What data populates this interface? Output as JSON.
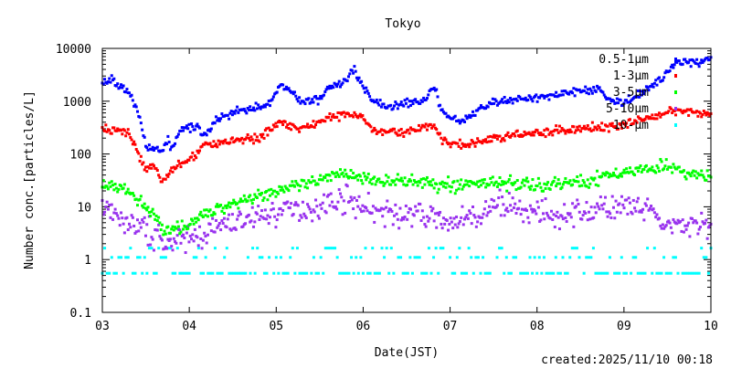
{
  "chart_data": {
    "type": "scatter",
    "title": "Tokyo",
    "xlabel": "Date(JST)",
    "ylabel": "Number conc.[particles/L]",
    "yscale": "log",
    "ylim": [
      0.1,
      10000
    ],
    "xlim": [
      3,
      10
    ],
    "xticks": [
      {
        "v": 3,
        "label": "03"
      },
      {
        "v": 4,
        "label": "04"
      },
      {
        "v": 5,
        "label": "05"
      },
      {
        "v": 6,
        "label": "06"
      },
      {
        "v": 7,
        "label": "07"
      },
      {
        "v": 8,
        "label": "08"
      },
      {
        "v": 9,
        "label": "09"
      },
      {
        "v": 10,
        "label": "10"
      }
    ],
    "yticks": [
      {
        "v": 0.1,
        "label": "0.1"
      },
      {
        "v": 1,
        "label": "1"
      },
      {
        "v": 10,
        "label": "10"
      },
      {
        "v": 100,
        "label": "100"
      },
      {
        "v": 1000,
        "label": "1000"
      },
      {
        "v": 10000,
        "label": "10000"
      }
    ],
    "legend_position": "top-right",
    "series": [
      {
        "name": "0.5-1μm",
        "color": "#0000ff",
        "noise": 0.12,
        "points": [
          [
            3,
            2000
          ],
          [
            3.1,
            2800
          ],
          [
            3.2,
            2000
          ],
          [
            3.3,
            1500
          ],
          [
            3.4,
            700
          ],
          [
            3.5,
            150
          ],
          [
            3.6,
            120
          ],
          [
            3.7,
            120
          ],
          [
            3.75,
            200
          ],
          [
            3.8,
            120
          ],
          [
            3.9,
            300
          ],
          [
            4,
            300
          ],
          [
            4.1,
            350
          ],
          [
            4.15,
            200
          ],
          [
            4.3,
            400
          ],
          [
            4.5,
            600
          ],
          [
            4.7,
            700
          ],
          [
            4.9,
            800
          ],
          [
            5,
            1500
          ],
          [
            5.05,
            2000
          ],
          [
            5.1,
            1800
          ],
          [
            5.3,
            1000
          ],
          [
            5.5,
            1100
          ],
          [
            5.6,
            1800
          ],
          [
            5.8,
            2500
          ],
          [
            5.9,
            4000
          ],
          [
            6,
            2000
          ],
          [
            6.1,
            1000
          ],
          [
            6.3,
            800
          ],
          [
            6.5,
            900
          ],
          [
            6.7,
            1000
          ],
          [
            6.82,
            1900
          ],
          [
            6.9,
            700
          ],
          [
            7,
            500
          ],
          [
            7.1,
            400
          ],
          [
            7.2,
            500
          ],
          [
            7.4,
            800
          ],
          [
            7.6,
            1000
          ],
          [
            7.8,
            1100
          ],
          [
            8,
            1200
          ],
          [
            8.2,
            1300
          ],
          [
            8.4,
            1500
          ],
          [
            8.6,
            1600
          ],
          [
            8.7,
            1800
          ],
          [
            8.8,
            1200
          ],
          [
            8.9,
            1000
          ],
          [
            9,
            900
          ],
          [
            9.2,
            1500
          ],
          [
            9.4,
            2500
          ],
          [
            9.5,
            3500
          ],
          [
            9.6,
            5000
          ],
          [
            9.7,
            6000
          ],
          [
            9.8,
            5000
          ],
          [
            10,
            6500
          ]
        ]
      },
      {
        "name": "1-3μm",
        "color": "#ff0000",
        "noise": 0.12,
        "points": [
          [
            3,
            300
          ],
          [
            3.3,
            250
          ],
          [
            3.5,
            50
          ],
          [
            3.6,
            60
          ],
          [
            3.7,
            30
          ],
          [
            3.8,
            50
          ],
          [
            4,
            80
          ],
          [
            4.2,
            150
          ],
          [
            4.5,
            180
          ],
          [
            4.8,
            200
          ],
          [
            5,
            350
          ],
          [
            5.1,
            400
          ],
          [
            5.3,
            300
          ],
          [
            5.6,
            450
          ],
          [
            5.8,
            600
          ],
          [
            6,
            500
          ],
          [
            6.1,
            300
          ],
          [
            6.5,
            250
          ],
          [
            6.8,
            350
          ],
          [
            6.9,
            200
          ],
          [
            7,
            150
          ],
          [
            7.2,
            150
          ],
          [
            7.5,
            200
          ],
          [
            8,
            250
          ],
          [
            8.5,
            300
          ],
          [
            9,
            350
          ],
          [
            9.3,
            500
          ],
          [
            9.6,
            700
          ],
          [
            9.8,
            600
          ],
          [
            10,
            550
          ]
        ]
      },
      {
        "name": "3-5μm",
        "color": "#00ff00",
        "noise": 0.18,
        "points": [
          [
            3,
            25
          ],
          [
            3.3,
            20
          ],
          [
            3.5,
            10
          ],
          [
            3.7,
            4
          ],
          [
            3.9,
            4
          ],
          [
            4.1,
            6
          ],
          [
            4.5,
            12
          ],
          [
            5,
            20
          ],
          [
            5.5,
            30
          ],
          [
            5.8,
            45
          ],
          [
            6,
            35
          ],
          [
            6.5,
            30
          ],
          [
            7,
            25
          ],
          [
            7.5,
            30
          ],
          [
            8,
            25
          ],
          [
            8.5,
            30
          ],
          [
            9,
            45
          ],
          [
            9.4,
            60
          ],
          [
            9.7,
            45
          ],
          [
            10,
            35
          ]
        ]
      },
      {
        "name": "5-10μm",
        "color": "#9933ee",
        "noise": 0.35,
        "points": [
          [
            3,
            8
          ],
          [
            3.3,
            5
          ],
          [
            3.6,
            3
          ],
          [
            3.8,
            2
          ],
          [
            4,
            2.5
          ],
          [
            4.5,
            5
          ],
          [
            5,
            8
          ],
          [
            5.5,
            10
          ],
          [
            5.8,
            15
          ],
          [
            6,
            10
          ],
          [
            6.3,
            7
          ],
          [
            6.7,
            7
          ],
          [
            7,
            5
          ],
          [
            7.3,
            6
          ],
          [
            7.6,
            12
          ],
          [
            8,
            7
          ],
          [
            8.5,
            8
          ],
          [
            9,
            10
          ],
          [
            9.3,
            8
          ],
          [
            9.5,
            4
          ],
          [
            10,
            5
          ]
        ]
      },
      {
        "name": "10-μm",
        "color": "#00ffff",
        "levels": [
          0.55,
          1.1,
          1.65
        ]
      }
    ]
  },
  "footer": {
    "created": "created:2025/11/10 00:18"
  }
}
